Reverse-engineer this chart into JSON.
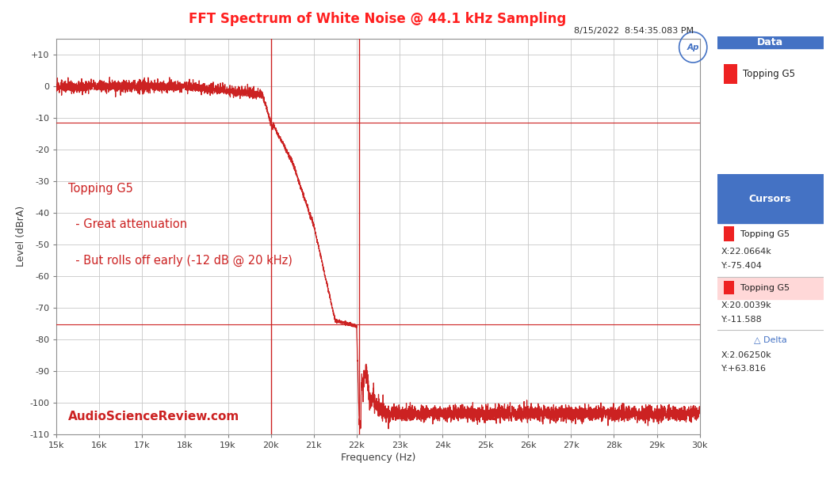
{
  "title": "FFT Spectrum of White Noise @ 44.1 kHz Sampling",
  "title_color": "#FF2020",
  "xlabel": "Frequency (Hz)",
  "ylabel": "Level (dBrA)",
  "timestamp": "8/15/2022  8:54:35.083 PM",
  "xlim": [
    15000,
    30000
  ],
  "ylim": [
    -110,
    15
  ],
  "xticks": [
    15000,
    16000,
    17000,
    18000,
    19000,
    20000,
    21000,
    22000,
    23000,
    24000,
    25000,
    26000,
    27000,
    28000,
    29000,
    30000
  ],
  "xtick_labels": [
    "15k",
    "16k",
    "17k",
    "18k",
    "19k",
    "20k",
    "21k",
    "22k",
    "23k",
    "24k",
    "25k",
    "26k",
    "27k",
    "28k",
    "29k",
    "30k"
  ],
  "yticks": [
    -110,
    -100,
    -90,
    -80,
    -70,
    -60,
    -50,
    -40,
    -30,
    -20,
    -10,
    0,
    10
  ],
  "ytick_labels": [
    "-110",
    "-100",
    "-90",
    "-80",
    "-70",
    "-60",
    "-50",
    "-40",
    "-30",
    "-20",
    "-10",
    "0",
    "+10"
  ],
  "line_color": "#CC2222",
  "line_width": 0.9,
  "bg_color": "#FFFFFF",
  "plot_bg_color": "#FFFFFF",
  "grid_color": "#C8C8C8",
  "annotation_line1": "Topping G5",
  "annotation_line2": "  - Great attenuation",
  "annotation_line3": "  - But rolls off early (-12 dB @ 20 kHz)",
  "annotation_color": "#CC2222",
  "watermark": "AudioScienceReview.com",
  "watermark_color": "#CC2222",
  "cursor_vline_x1": 20000,
  "cursor_vline_x2": 22050,
  "cursor_hline_y1": -75.404,
  "cursor_hline_y2": -11.588,
  "ap_logo_color": "#4472C4",
  "data_panel_header_color": "#4472C4",
  "data_panel_label": "Data",
  "data_series_label": "Topping G5",
  "cursors_panel_header_color": "#4472C4",
  "cursors_panel_label": "Cursors",
  "cursor1_label": "Topping G5",
  "cursor1_x": "X:22.0664k",
  "cursor1_y": "Y:-75.404",
  "cursor2_label": "Topping G5",
  "cursor2_x": "X:20.0039k",
  "cursor2_y": "Y:-11.588",
  "delta_label": "△ Delta",
  "delta_x": "X:2.06250k",
  "delta_y": "Y:+63.816"
}
